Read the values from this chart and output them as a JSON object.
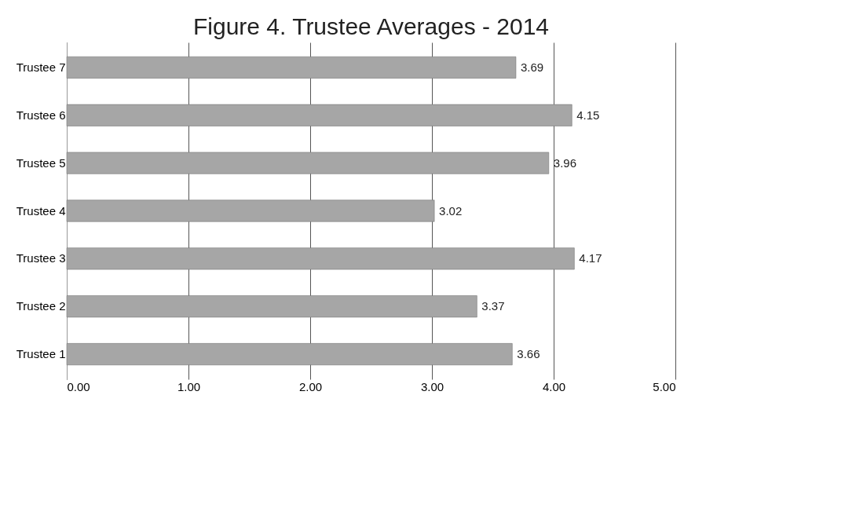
{
  "chart_data": {
    "type": "bar",
    "orientation": "horizontal",
    "title": "Figure 4. Trustee Averages - 2014",
    "categories": [
      "Trustee 7",
      "Trustee 6",
      "Trustee 5",
      "Trustee 4",
      "Trustee 3",
      "Trustee 2",
      "Trustee 1"
    ],
    "values": [
      3.69,
      4.15,
      3.96,
      3.02,
      4.17,
      3.37,
      3.66
    ],
    "color": "#a6a6a6",
    "xlim": [
      0,
      5
    ],
    "xticks": [
      {
        "value": 0,
        "label": "0.00"
      },
      {
        "value": 1,
        "label": "1.00"
      },
      {
        "value": 2,
        "label": "2.00"
      },
      {
        "value": 3,
        "label": "3.00"
      },
      {
        "value": 4,
        "label": "4.00"
      },
      {
        "value": 5,
        "label": "5.00"
      }
    ],
    "grid": "x",
    "data_labels": true
  }
}
